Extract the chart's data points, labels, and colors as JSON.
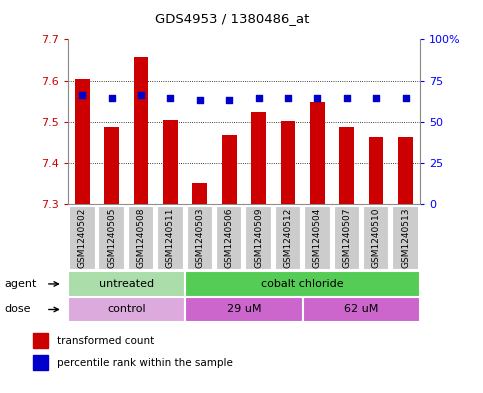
{
  "title": "GDS4953 / 1380486_at",
  "samples": [
    "GSM1240502",
    "GSM1240505",
    "GSM1240508",
    "GSM1240511",
    "GSM1240503",
    "GSM1240506",
    "GSM1240509",
    "GSM1240512",
    "GSM1240504",
    "GSM1240507",
    "GSM1240510",
    "GSM1240513"
  ],
  "bar_values": [
    7.603,
    7.487,
    7.657,
    7.505,
    7.352,
    7.468,
    7.524,
    7.502,
    7.548,
    7.487,
    7.464,
    7.463
  ],
  "dot_values": [
    7.565,
    7.558,
    7.565,
    7.558,
    7.554,
    7.554,
    7.558,
    7.558,
    7.558,
    7.558,
    7.558,
    7.558
  ],
  "y_min": 7.3,
  "y_max": 7.7,
  "y_ticks": [
    7.3,
    7.4,
    7.5,
    7.6,
    7.7
  ],
  "y_ticks_right": [
    0,
    25,
    50,
    75,
    100
  ],
  "y_ticks_right_labels": [
    "0",
    "25",
    "50",
    "75",
    "100%"
  ],
  "bar_color": "#cc0000",
  "dot_color": "#0000cc",
  "bar_bottom": 7.3,
  "agent_labels": [
    {
      "label": "untreated",
      "start": 0,
      "end": 4,
      "color": "#aaddaa"
    },
    {
      "label": "cobalt chloride",
      "start": 4,
      "end": 12,
      "color": "#55cc55"
    }
  ],
  "dose_labels": [
    {
      "label": "control",
      "start": 0,
      "end": 4,
      "color": "#ddaadd"
    },
    {
      "label": "29 uM",
      "start": 4,
      "end": 8,
      "color": "#cc66cc"
    },
    {
      "label": "62 uM",
      "start": 8,
      "end": 12,
      "color": "#cc66cc"
    }
  ],
  "legend_items": [
    {
      "label": "transformed count",
      "color": "#cc0000"
    },
    {
      "label": "percentile rank within the sample",
      "color": "#0000cc"
    }
  ],
  "background_color": "#ffffff",
  "plot_bg_color": "#ffffff",
  "grid_color": "#000000",
  "label_color_left": "#cc0000",
  "label_color_right": "#0000ff",
  "sample_bg_color": "#cccccc",
  "border_color": "#888888"
}
